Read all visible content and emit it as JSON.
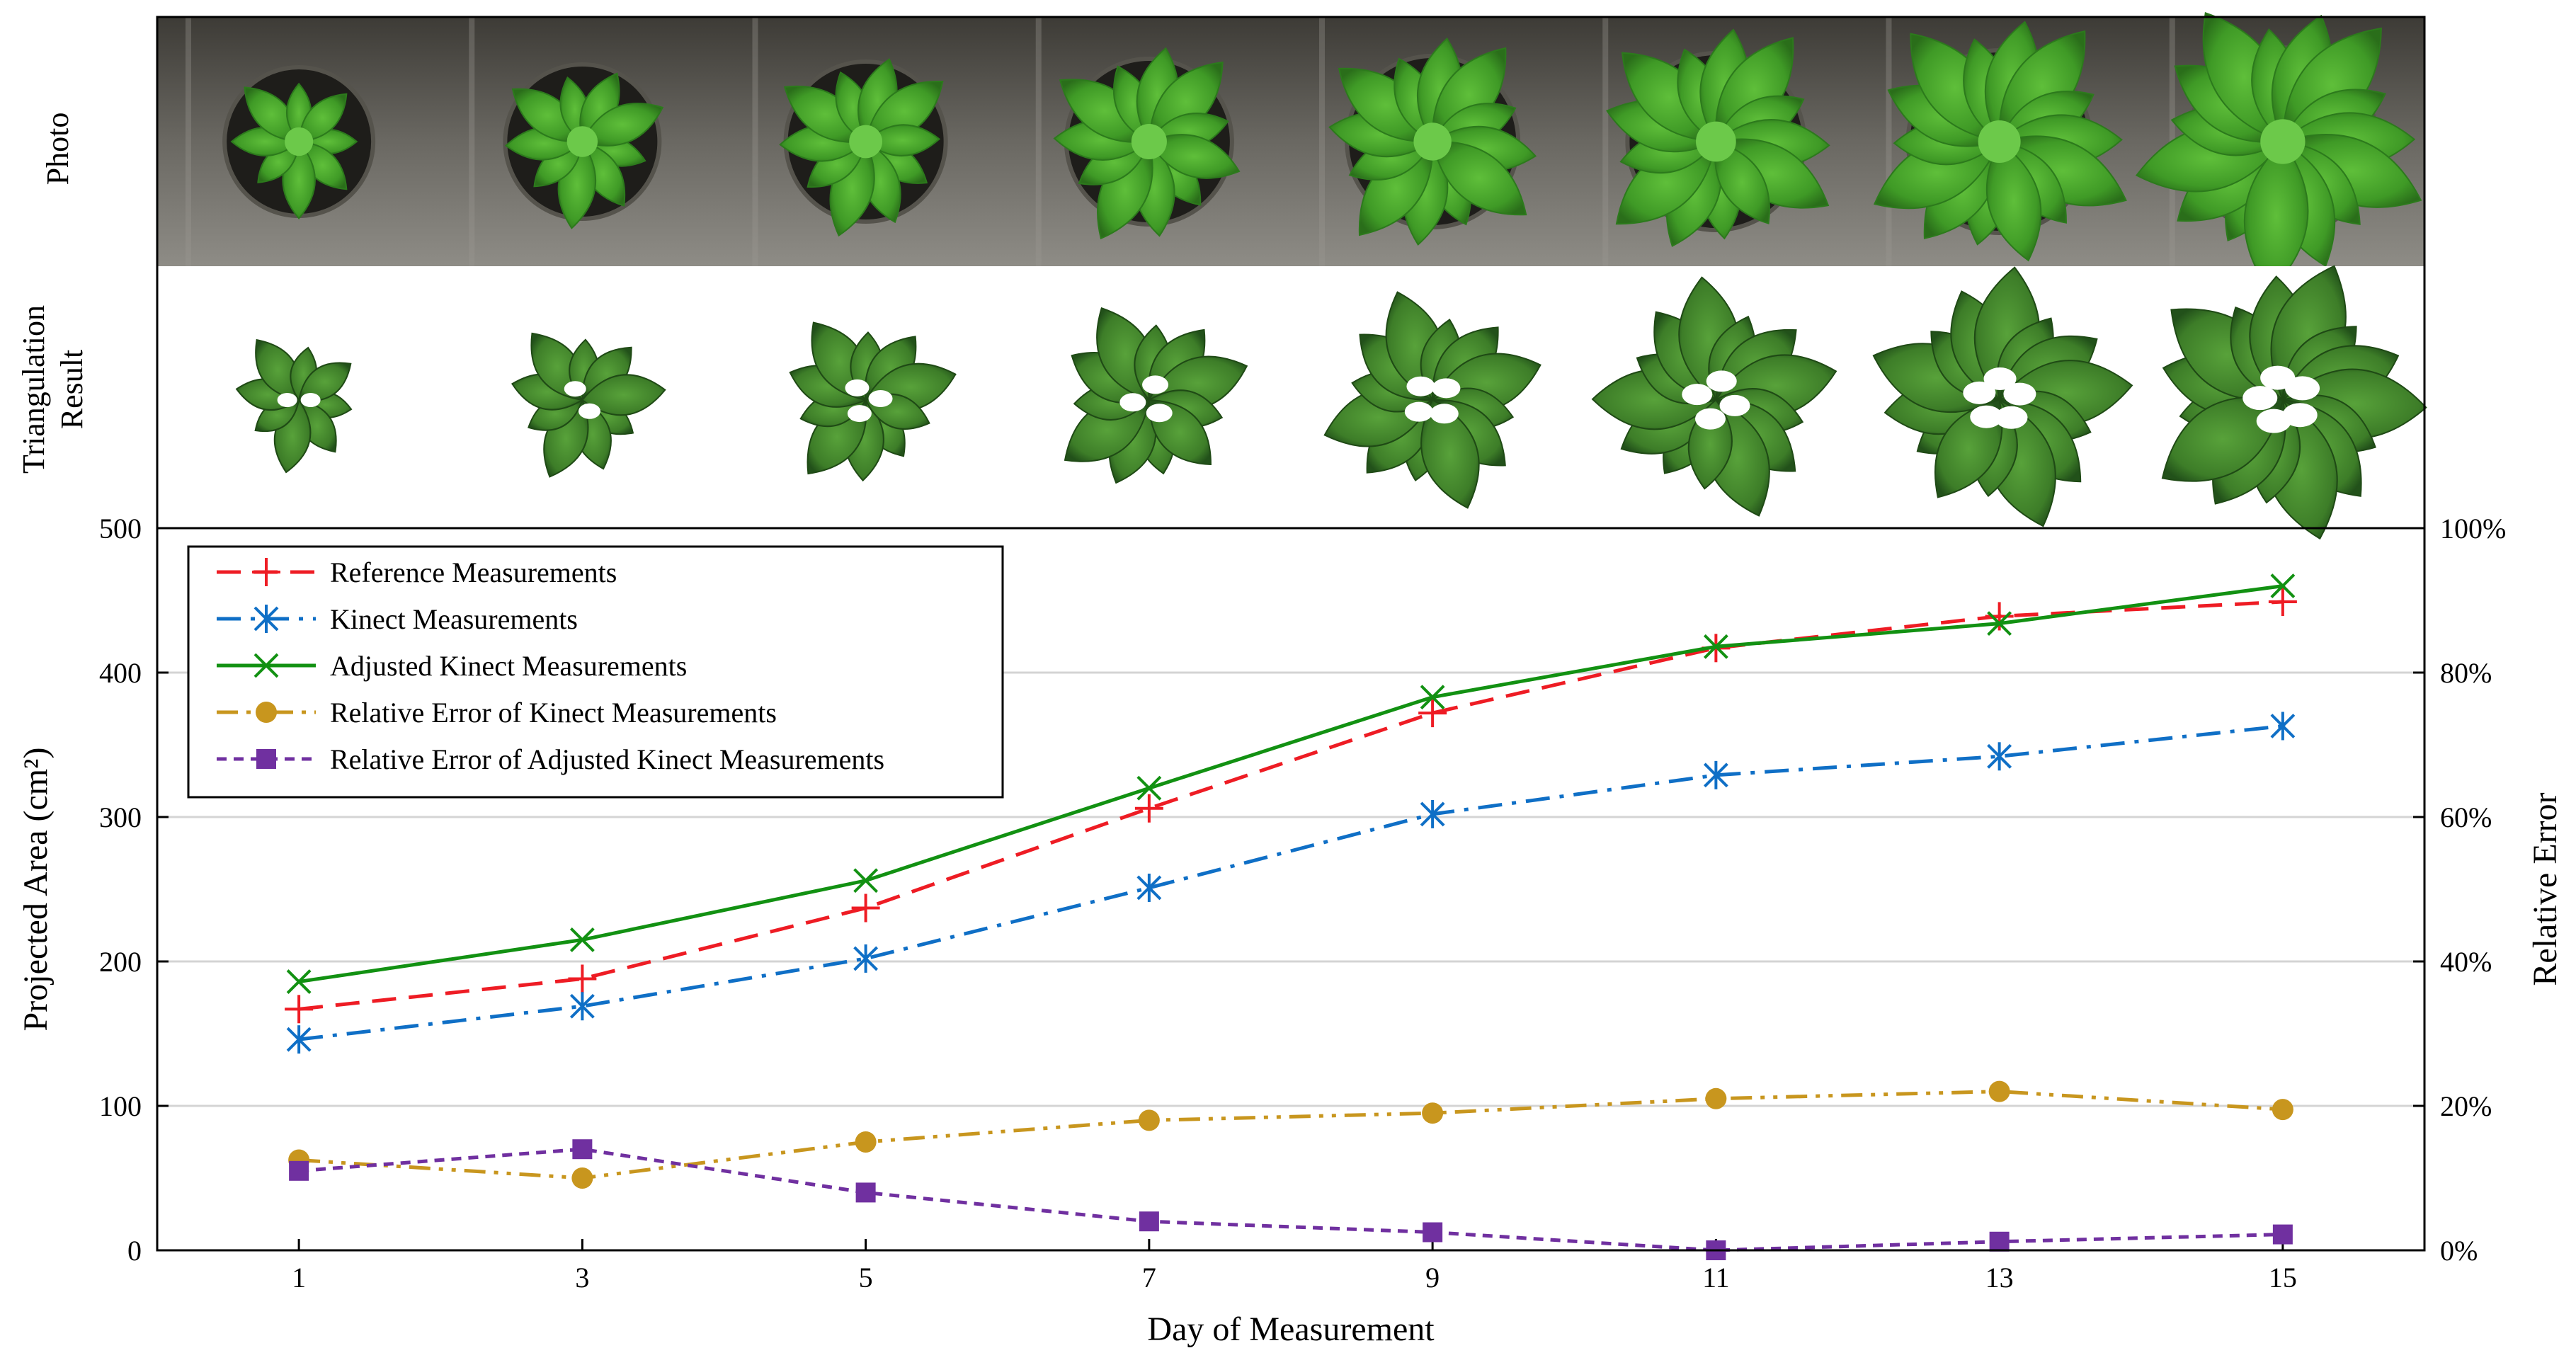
{
  "rows": {
    "photo_label": "Photo",
    "triangulation_label_line1": "Triangulation",
    "triangulation_label_line2": "Result"
  },
  "chart_data": {
    "type": "line",
    "xlabel": "Day of Measurement",
    "ylabel": "Projected Area (cm²)",
    "y2label": "Relative Error",
    "x": [
      1,
      3,
      5,
      7,
      9,
      11,
      13,
      15
    ],
    "x_ticks": [
      "1",
      "3",
      "5",
      "7",
      "9",
      "11",
      "13",
      "15"
    ],
    "xlim": [
      0,
      16
    ],
    "ylim": [
      0,
      500
    ],
    "y_ticks": [
      "0",
      "100",
      "200",
      "300",
      "400",
      "500"
    ],
    "y2lim": [
      0,
      1
    ],
    "y2_ticks": [
      "0%",
      "20%",
      "40%",
      "60%",
      "80%",
      "100%"
    ],
    "grid": "horizontal",
    "legend_position": "top-left",
    "series": [
      {
        "name": "Reference Measurements",
        "axis": "left",
        "color": "#ee1c24",
        "marker": "plus",
        "dash": "dashed",
        "values": [
          167,
          188,
          237,
          306,
          372,
          417,
          439,
          449
        ]
      },
      {
        "name": "Kinect Measurements",
        "axis": "left",
        "color": "#0f6fc6",
        "marker": "asterisk",
        "dash": "dashdot",
        "values": [
          146,
          169,
          202,
          251,
          302,
          329,
          342,
          363
        ]
      },
      {
        "name": "Adjusted Kinect Measurements",
        "axis": "left",
        "color": "#129112",
        "marker": "x",
        "dash": "solid",
        "values": [
          186,
          215,
          256,
          320,
          383,
          418,
          434,
          460
        ]
      },
      {
        "name": "Relative Error of Kinect Measurements",
        "axis": "right",
        "color": "#c8961e",
        "marker": "circle",
        "dash": "dashdotdot",
        "values": [
          0.125,
          0.1,
          0.15,
          0.18,
          0.19,
          0.21,
          0.22,
          0.195
        ]
      },
      {
        "name": "Relative Error of Adjusted Kinect Measurements",
        "axis": "right",
        "color": "#7030a0",
        "marker": "square",
        "dash": "shortdash",
        "values": [
          0.11,
          0.14,
          0.08,
          0.04,
          0.025,
          0.0,
          0.012,
          0.022
        ]
      }
    ]
  }
}
